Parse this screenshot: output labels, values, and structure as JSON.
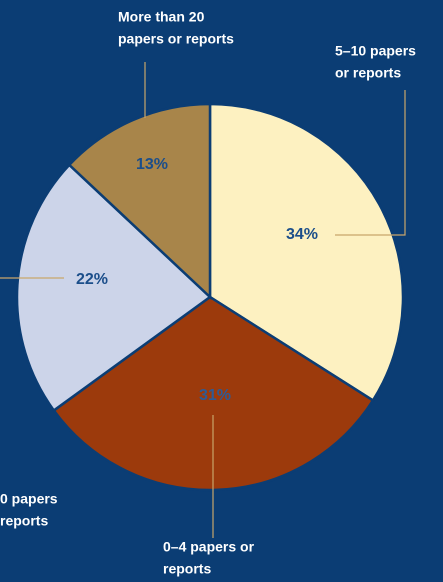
{
  "chart_data": {
    "type": "pie",
    "categories": [
      [
        "5–10 papers",
        "or reports"
      ],
      [
        "0–4 papers or",
        "reports"
      ],
      [
        "0 papers",
        "reports"
      ],
      [
        "More than 20",
        "papers or reports"
      ]
    ],
    "values": [
      34,
      31,
      22,
      13
    ],
    "value_labels": [
      "34%",
      "31%",
      "22%",
      "13%"
    ],
    "colors": [
      "#fdf1c1",
      "#9c3a0c",
      "#ccd4e9",
      "#a8854a"
    ]
  }
}
